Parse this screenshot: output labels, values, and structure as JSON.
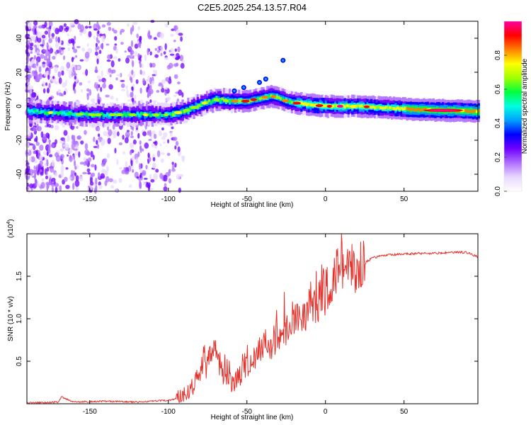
{
  "title": "C2E5.2025.254.13.57.R04",
  "chart_data": [
    {
      "type": "heatmap",
      "name": "spectrogram",
      "xlabel": "Height of straight line (km)",
      "ylabel": "Frequency (Hz)",
      "xlim": [
        -190,
        97
      ],
      "ylim": [
        -50,
        50
      ],
      "xticks": [
        -150,
        -100,
        -50,
        0,
        50
      ],
      "xtick_labels": [
        "-150",
        "-100",
        "-50",
        "0",
        "50"
      ],
      "yticks": [
        -40,
        -20,
        0,
        20,
        40
      ],
      "ytick_labels": [
        "-40",
        "-20",
        "0",
        "20",
        "40"
      ],
      "ridge": {
        "x": [
          -190,
          -150,
          -120,
          -100,
          -90,
          -80,
          -70,
          -60,
          -50,
          -40,
          -35,
          -30,
          -25,
          -20,
          -10,
          0,
          20,
          40,
          60,
          97
        ],
        "freq": [
          -3,
          -5,
          -5,
          -5,
          -3,
          1,
          4,
          3,
          3,
          5,
          6,
          5,
          3,
          2,
          1,
          0,
          0,
          -1,
          -2,
          -3
        ]
      },
      "spurs": [
        {
          "x": -58,
          "freq": 9
        },
        {
          "x": -52,
          "freq": 11
        },
        {
          "x": -42,
          "freq": 14
        },
        {
          "x": -38,
          "freq": 16
        },
        {
          "x": -27,
          "freq": 27
        }
      ],
      "colorbar": {
        "label": "Normalized spectral amplitude",
        "range": [
          0,
          1
        ],
        "ticks": [
          0.0,
          0.2,
          0.4,
          0.6,
          0.8
        ],
        "tick_labels": [
          "0.0",
          "0.2",
          "0.4",
          "0.6",
          "0.8"
        ],
        "colors": [
          "#ffffff",
          "#e8d8ff",
          "#b070ff",
          "#7000ff",
          "#0000ff",
          "#00a0ff",
          "#00ffe0",
          "#00ff40",
          "#a0ff00",
          "#ffff00",
          "#ff8000",
          "#ff0000",
          "#ff00a0"
        ]
      }
    },
    {
      "type": "line",
      "name": "snr",
      "xlabel": "Height of straight line (km)",
      "ylabel": "SNR (10 * v/v)",
      "y_multiplier": "(x10",
      "y_multiplier_exp": "4",
      "y_multiplier_close": ")",
      "xlim": [
        -190,
        97
      ],
      "ylim": [
        0,
        2.0
      ],
      "xticks": [
        -150,
        -100,
        -50,
        0,
        50
      ],
      "xtick_labels": [
        "-150",
        "-100",
        "-50",
        "0",
        "50"
      ],
      "yticks": [
        0.5,
        1.0,
        1.5
      ],
      "ytick_labels": [
        "0.5",
        "1.0",
        "1.5"
      ],
      "color": "#e8302a",
      "series": [
        {
          "name": "SNR",
          "x": [
            -190,
            -170,
            -168,
            -160,
            -140,
            -120,
            -100,
            -95,
            -90,
            -85,
            -80,
            -75,
            -72,
            -68,
            -65,
            -60,
            -55,
            -50,
            -45,
            -40,
            -35,
            -30,
            -25,
            -20,
            -15,
            -10,
            -5,
            0,
            5,
            8,
            10,
            12,
            15,
            18,
            20,
            25,
            30,
            40,
            50,
            60,
            70,
            80,
            90,
            97
          ],
          "y": [
            0.01,
            0.02,
            0.08,
            0.02,
            0.03,
            0.02,
            0.04,
            0.06,
            0.12,
            0.2,
            0.35,
            0.45,
            0.65,
            0.5,
            0.35,
            0.25,
            0.3,
            0.45,
            0.55,
            0.65,
            0.7,
            0.8,
            0.9,
            1.05,
            1.0,
            1.2,
            1.15,
            1.3,
            1.45,
            1.6,
            1.75,
            1.55,
            1.65,
            1.55,
            1.6,
            1.65,
            1.72,
            1.75,
            1.76,
            1.77,
            1.77,
            1.78,
            1.78,
            1.73
          ]
        }
      ]
    }
  ]
}
